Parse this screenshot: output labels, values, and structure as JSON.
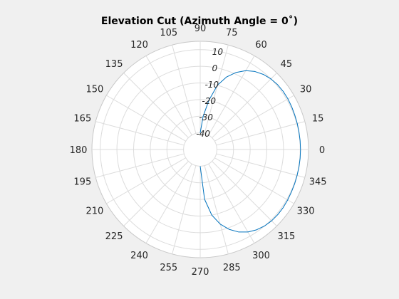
{
  "chart_data": {
    "type": "polar-line",
    "title": "Elevation Cut (Azimuth Angle = 0˚)",
    "theta_ticks": [
      "0",
      "15",
      "30",
      "45",
      "60",
      "75",
      "90",
      "105",
      "120",
      "135",
      "150",
      "165",
      "180",
      "195",
      "210",
      "225",
      "240",
      "255",
      "270",
      "285",
      "300",
      "315",
      "330",
      "345"
    ],
    "theta_tick_values": [
      0,
      15,
      30,
      45,
      60,
      75,
      90,
      105,
      120,
      135,
      150,
      165,
      180,
      195,
      210,
      225,
      240,
      255,
      270,
      285,
      300,
      315,
      330,
      345
    ],
    "r_ticks": [
      "-40",
      "-30",
      "-20",
      "-10",
      "0",
      "10"
    ],
    "r_tick_values": [
      -40,
      -30,
      -20,
      -10,
      0,
      10
    ],
    "rlim": [
      -50,
      15
    ],
    "theta_direction": "counterclockwise",
    "theta_zero": "right",
    "grid": true,
    "series_color": "#0072bd",
    "series": [
      {
        "theta": [
          -90,
          -85,
          -80,
          -75,
          -70,
          -65,
          -60,
          -55,
          -50,
          -45,
          -40,
          -35,
          -30,
          -25,
          -20,
          -15,
          -10,
          -5,
          0,
          5,
          10,
          15,
          20,
          25,
          30,
          35,
          40,
          45,
          50,
          55,
          60,
          65,
          70,
          75,
          80,
          85,
          90
        ],
        "r": [
          -40,
          -20,
          -10,
          -3.6,
          1.1,
          4.7,
          7.2,
          8.9,
          10,
          10.6,
          10.8,
          10.8,
          10.6,
          10.4,
          10.3,
          10.2,
          10.2,
          10.2,
          10.2,
          10.2,
          10.2,
          10.3,
          10.4,
          10.6,
          10.8,
          10.8,
          10.6,
          10,
          8.9,
          7.2,
          4.7,
          1.1,
          -3.6,
          -10,
          -20,
          -30,
          -40
        ]
      }
    ]
  }
}
